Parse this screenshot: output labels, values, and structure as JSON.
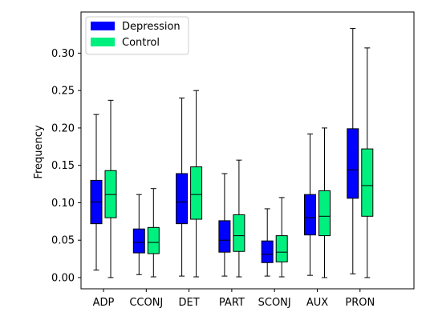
{
  "chart_data": {
    "type": "boxplot",
    "title": "",
    "xlabel": "",
    "ylabel": "Frequency",
    "ylim": [
      -0.015,
      0.355
    ],
    "yticks": [
      0.0,
      0.05,
      0.1,
      0.15,
      0.2,
      0.25,
      0.3
    ],
    "ytick_labels": [
      "0.00",
      "0.05",
      "0.10",
      "0.15",
      "0.20",
      "0.25",
      "0.30"
    ],
    "grid": false,
    "legend_position": "top-left",
    "categories": [
      "ADP",
      "CCONJ",
      "DET",
      "PART",
      "SCONJ",
      "AUX",
      "PRON"
    ],
    "series": [
      {
        "name": "Depression",
        "color": "#0000ff",
        "boxes": [
          {
            "min": 0.01,
            "q1": 0.072,
            "median": 0.101,
            "q3": 0.13,
            "max": 0.218
          },
          {
            "min": 0.004,
            "q1": 0.033,
            "median": 0.047,
            "q3": 0.065,
            "max": 0.111
          },
          {
            "min": 0.002,
            "q1": 0.072,
            "median": 0.101,
            "q3": 0.139,
            "max": 0.24
          },
          {
            "min": 0.002,
            "q1": 0.034,
            "median": 0.05,
            "q3": 0.076,
            "max": 0.139
          },
          {
            "min": 0.002,
            "q1": 0.02,
            "median": 0.031,
            "q3": 0.049,
            "max": 0.092
          },
          {
            "min": 0.003,
            "q1": 0.057,
            "median": 0.08,
            "q3": 0.111,
            "max": 0.192
          },
          {
            "min": 0.005,
            "q1": 0.106,
            "median": 0.144,
            "q3": 0.199,
            "max": 0.333
          }
        ]
      },
      {
        "name": "Control",
        "color": "#00f080",
        "boxes": [
          {
            "min": 0.0,
            "q1": 0.08,
            "median": 0.111,
            "q3": 0.143,
            "max": 0.237
          },
          {
            "min": 0.001,
            "q1": 0.032,
            "median": 0.047,
            "q3": 0.067,
            "max": 0.119
          },
          {
            "min": 0.001,
            "q1": 0.078,
            "median": 0.111,
            "q3": 0.148,
            "max": 0.25
          },
          {
            "min": 0.001,
            "q1": 0.035,
            "median": 0.056,
            "q3": 0.084,
            "max": 0.157
          },
          {
            "min": 0.001,
            "q1": 0.021,
            "median": 0.034,
            "q3": 0.056,
            "max": 0.107
          },
          {
            "min": 0.0,
            "q1": 0.056,
            "median": 0.082,
            "q3": 0.116,
            "max": 0.2
          },
          {
            "min": 0.0,
            "q1": 0.082,
            "median": 0.123,
            "q3": 0.172,
            "max": 0.307
          }
        ]
      }
    ]
  }
}
